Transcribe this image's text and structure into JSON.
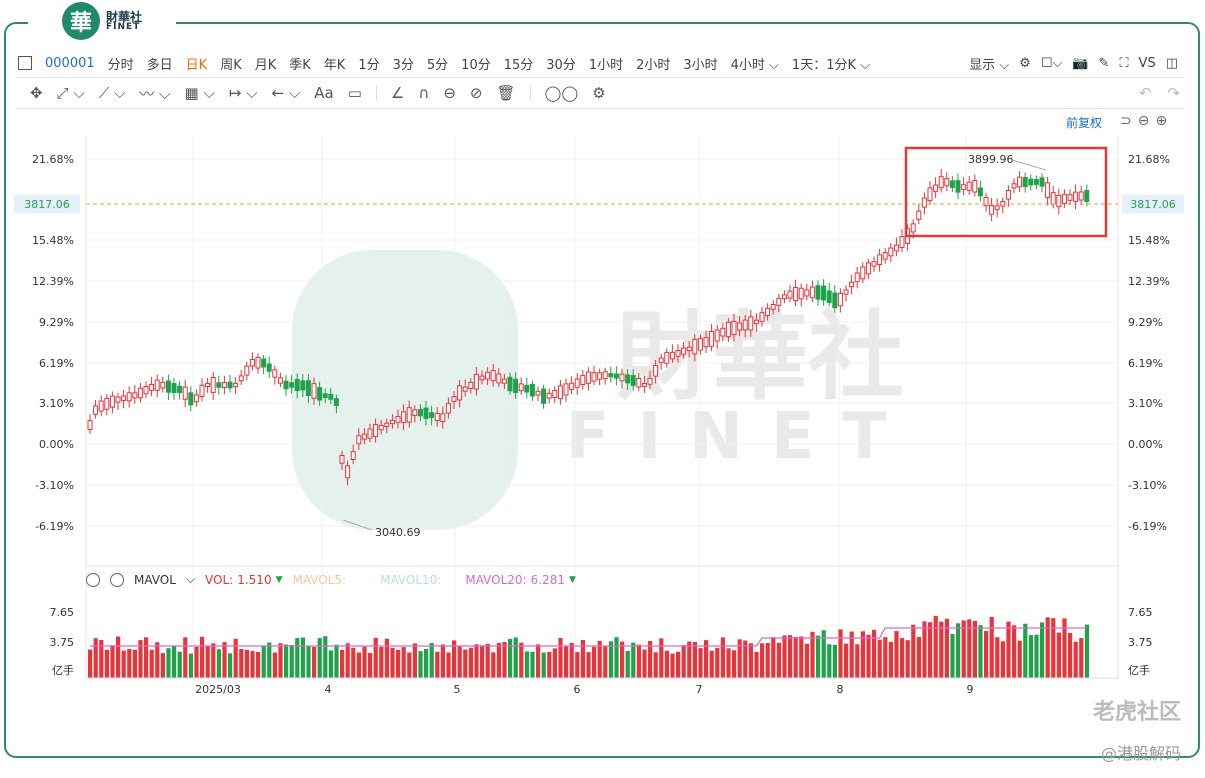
{
  "brand": {
    "cn": "財華社",
    "en": "FINET",
    "badge": "華"
  },
  "toolbar": {
    "code": "000001",
    "periods": [
      "分时",
      "多日",
      "日K",
      "周K",
      "月K",
      "季K",
      "年K",
      "1分",
      "3分",
      "5分",
      "10分",
      "15分",
      "30分",
      "1小时",
      "2小时",
      "3小时",
      "4小时 ⌵"
    ],
    "active_period": "日K",
    "kline_setting": "1天：1分K ⌵",
    "display": "显示 ⌵",
    "vs": "VS"
  },
  "tools": [
    "✥",
    "⤢ ⌵",
    "⟋ ⌵",
    "〰 ⌵",
    "▦ ⌵",
    "↦ ⌵",
    "← ⌵",
    "Aa",
    "▭",
    "∠",
    "∩",
    "⊖",
    "⊘",
    "🗑",
    "◯◯",
    "⚙"
  ],
  "adjust": "前复权",
  "price_axis": [
    "21.68%",
    "15.48%",
    "12.39%",
    "9.29%",
    "6.19%",
    "3.10%",
    "0.00%",
    "-3.10%",
    "-6.19%"
  ],
  "current_price": "3817.06",
  "high_label": "3899.96",
  "low_label": "3040.69",
  "volume": {
    "indicator": "MAVOL",
    "vol_label": "VOL:",
    "vol_value": "1.510",
    "mavol5": "MAVOL5:",
    "mavol10": "MAVOL10:",
    "mavol20_label": "MAVOL20:",
    "mavol20_value": "6.281",
    "axis": [
      "7.65",
      "3.75",
      "亿手"
    ]
  },
  "x_labels": [
    "2025/03",
    "4",
    "5",
    "6",
    "7",
    "8",
    "9"
  ],
  "watermark": {
    "cn": "財華社",
    "en": "FINET"
  },
  "bottom_watermark": "老虎社区",
  "credit": "@港股解码",
  "colors": {
    "up": "#e8343a",
    "down": "#1ea34a",
    "accent": "#2e8b6e",
    "box": "#e53935",
    "active": "#ff6a00"
  }
}
